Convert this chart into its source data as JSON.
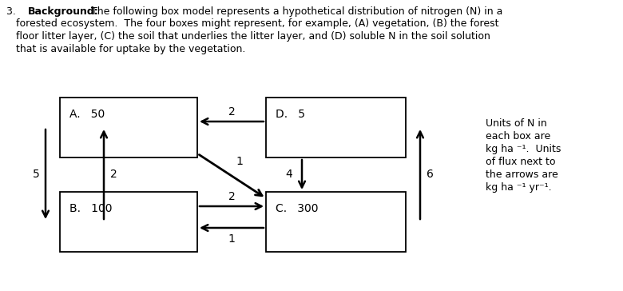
{
  "bg_color": "#ffffff",
  "text_color": "#000000",
  "font_size_text": 9.0,
  "font_size_box": 10.0,
  "font_size_arrow": 10.0,
  "font_size_legend": 9.0,
  "line1_bold": "Background:",
  "line1_pre": "3.  ",
  "line1_post": " The following box model represents a hypothetical distribution of nitrogen (N) in a",
  "line2": "   forested ecosystem.  The four boxes might represent, for example, (A) vegetation, (B) the forest",
  "line3": "   floor litter layer, (C) the soil that underlies the litter layer, and (D) soluble N in the soil solution",
  "line4": "   that is available for uptake by the vegetation.",
  "boxes": {
    "A": {
      "label": "A.",
      "value": "50"
    },
    "B": {
      "label": "B.",
      "value": "100"
    },
    "C": {
      "label": "C.",
      "value": "300"
    },
    "D": {
      "label": "D.",
      "value": "5"
    }
  },
  "legend_line1": "Units of N in",
  "legend_line2": "each box are",
  "legend_line3": "kg ha ⁻¹.  Units",
  "legend_line4": "of flux next to",
  "legend_line5": "the arrows are",
  "legend_line6": "kg ha ⁻¹ yr⁻¹."
}
